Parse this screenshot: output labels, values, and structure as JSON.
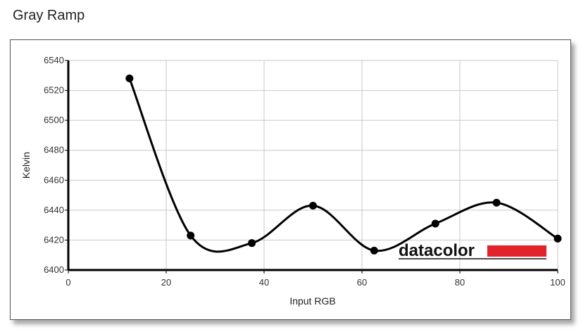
{
  "page": {
    "title": "Gray Ramp"
  },
  "chart_data": {
    "type": "line",
    "title": "",
    "xlabel": "Input RGB",
    "ylabel": "Kelvin",
    "xlim": [
      0,
      100
    ],
    "ylim": [
      6400,
      6540
    ],
    "x_ticks": [
      0,
      20,
      40,
      60,
      80,
      100
    ],
    "y_ticks": [
      6400,
      6420,
      6440,
      6460,
      6480,
      6500,
      6520,
      6540
    ],
    "grid": true,
    "smooth": true,
    "series": [
      {
        "x": [
          12.5,
          25,
          37.5,
          50,
          62.5,
          75,
          87.5,
          100
        ],
        "values": [
          6528,
          6423,
          6418,
          6443,
          6413,
          6431,
          6445,
          6421
        ]
      }
    ],
    "colors": {
      "line": "#000000",
      "grid": "#c8c8c8",
      "logo_bar": "#e3232b"
    }
  },
  "logo": {
    "text": "datacolor"
  }
}
